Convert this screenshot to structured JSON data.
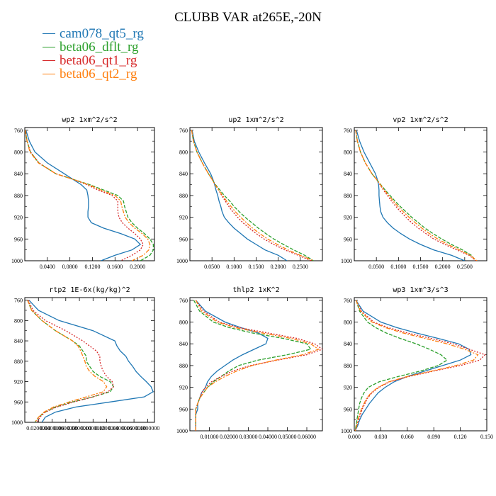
{
  "title": "CLUBB VAR at265E,-20N",
  "legend": [
    {
      "label": "cam078_qt5_rg",
      "color": "#1f77b4"
    },
    {
      "label": "beta06_dflt_rg",
      "color": "#2ca02c"
    },
    {
      "label": "beta06_qt1_rg",
      "color": "#d62728"
    },
    {
      "label": "beta06_qt2_rg",
      "color": "#ff7f0e"
    }
  ],
  "chart_data": [
    {
      "type": "line",
      "title": "wp2  1xm^2/s^2",
      "xlim": [
        0,
        0.23
      ],
      "ylim": [
        1000,
        755
      ],
      "xticks": [
        "0.0400",
        "0.0800",
        "0.1200",
        "0.1600",
        "0.2000"
      ],
      "xtick_values": [
        0.04,
        0.08,
        0.12,
        0.16,
        0.2
      ],
      "yticks": [
        760,
        800,
        840,
        880,
        920,
        960,
        1000
      ],
      "y": [
        760,
        780,
        800,
        820,
        840,
        850,
        860,
        870,
        880,
        890,
        900,
        910,
        920,
        930,
        940,
        950,
        960,
        970,
        980,
        990,
        1000
      ],
      "series": [
        {
          "name": "cam078_qt5_rg",
          "x": [
            0.002,
            0.008,
            0.018,
            0.04,
            0.07,
            0.085,
            0.1,
            0.11,
            0.112,
            0.113,
            0.113,
            0.112,
            0.112,
            0.118,
            0.14,
            0.17,
            0.195,
            0.205,
            0.19,
            0.16,
            0.135
          ]
        },
        {
          "name": "beta06_dflt_rg",
          "x": [
            0.001,
            0.004,
            0.01,
            0.025,
            0.055,
            0.085,
            0.115,
            0.14,
            0.165,
            0.175,
            0.177,
            0.18,
            0.183,
            0.19,
            0.2,
            0.212,
            0.222,
            0.228,
            0.228,
            0.222,
            0.205
          ]
        },
        {
          "name": "beta06_qt1_rg",
          "x": [
            0.001,
            0.004,
            0.01,
            0.025,
            0.055,
            0.085,
            0.11,
            0.13,
            0.155,
            0.165,
            0.165,
            0.165,
            0.167,
            0.173,
            0.183,
            0.195,
            0.205,
            0.21,
            0.205,
            0.19,
            0.17
          ]
        },
        {
          "name": "beta06_qt2_rg",
          "x": [
            0.001,
            0.004,
            0.009,
            0.024,
            0.055,
            0.085,
            0.113,
            0.135,
            0.16,
            0.17,
            0.172,
            0.175,
            0.178,
            0.185,
            0.195,
            0.208,
            0.218,
            0.222,
            0.22,
            0.21,
            0.19
          ]
        }
      ]
    },
    {
      "type": "line",
      "title": "up2  1xm^2/s^2",
      "xlim": [
        0,
        0.3
      ],
      "ylim": [
        1000,
        755
      ],
      "xticks": [
        "0.0500",
        "0.1000",
        "0.1500",
        "0.2000",
        "0.2500"
      ],
      "xtick_values": [
        0.05,
        0.1,
        0.15,
        0.2,
        0.25
      ],
      "yticks": [
        760,
        800,
        840,
        880,
        920,
        960,
        1000
      ],
      "y": [
        760,
        780,
        800,
        820,
        840,
        850,
        860,
        870,
        880,
        890,
        900,
        910,
        920,
        930,
        940,
        950,
        960,
        970,
        980,
        990,
        1000
      ],
      "series": [
        {
          "name": "cam078_qt5_rg",
          "x": [
            0.005,
            0.01,
            0.02,
            0.033,
            0.047,
            0.052,
            0.056,
            0.059,
            0.063,
            0.066,
            0.07,
            0.073,
            0.078,
            0.088,
            0.1,
            0.115,
            0.13,
            0.15,
            0.17,
            0.2,
            0.22
          ]
        },
        {
          "name": "beta06_dflt_rg",
          "x": [
            0.004,
            0.008,
            0.016,
            0.028,
            0.042,
            0.05,
            0.058,
            0.068,
            0.078,
            0.09,
            0.1,
            0.112,
            0.125,
            0.14,
            0.155,
            0.172,
            0.19,
            0.212,
            0.235,
            0.26,
            0.28
          ]
        },
        {
          "name": "beta06_qt1_rg",
          "x": [
            0.004,
            0.008,
            0.016,
            0.028,
            0.042,
            0.05,
            0.057,
            0.065,
            0.072,
            0.08,
            0.088,
            0.097,
            0.108,
            0.12,
            0.135,
            0.15,
            0.168,
            0.19,
            0.215,
            0.245,
            0.275
          ]
        },
        {
          "name": "beta06_qt2_rg",
          "x": [
            0.004,
            0.008,
            0.016,
            0.028,
            0.042,
            0.05,
            0.057,
            0.065,
            0.074,
            0.083,
            0.093,
            0.103,
            0.115,
            0.128,
            0.142,
            0.158,
            0.176,
            0.198,
            0.222,
            0.25,
            0.28
          ]
        }
      ]
    },
    {
      "type": "line",
      "title": "vp2  1xm^2/s^2",
      "xlim": [
        0,
        0.3
      ],
      "ylim": [
        1000,
        755
      ],
      "xticks": [
        "0.0500",
        "0.1000",
        "0.1500",
        "0.2000",
        "0.2500"
      ],
      "xtick_values": [
        0.05,
        0.1,
        0.15,
        0.2,
        0.25
      ],
      "yticks": [
        760,
        800,
        840,
        880,
        920,
        960,
        1000
      ],
      "y": [
        760,
        780,
        800,
        820,
        840,
        850,
        860,
        870,
        880,
        890,
        900,
        910,
        920,
        930,
        940,
        950,
        960,
        970,
        980,
        990,
        1000
      ],
      "series": [
        {
          "name": "cam078_qt5_rg",
          "x": [
            0.005,
            0.012,
            0.022,
            0.035,
            0.048,
            0.052,
            0.055,
            0.056,
            0.056,
            0.057,
            0.058,
            0.06,
            0.065,
            0.075,
            0.088,
            0.105,
            0.125,
            0.15,
            0.18,
            0.22,
            0.25
          ]
        },
        {
          "name": "beta06_dflt_rg",
          "x": [
            0.003,
            0.007,
            0.014,
            0.025,
            0.04,
            0.05,
            0.06,
            0.07,
            0.081,
            0.092,
            0.104,
            0.117,
            0.13,
            0.145,
            0.16,
            0.178,
            0.198,
            0.22,
            0.245,
            0.265,
            0.275
          ]
        },
        {
          "name": "beta06_qt1_rg",
          "x": [
            0.003,
            0.007,
            0.014,
            0.025,
            0.04,
            0.05,
            0.058,
            0.066,
            0.075,
            0.084,
            0.094,
            0.105,
            0.117,
            0.13,
            0.145,
            0.162,
            0.18,
            0.205,
            0.232,
            0.26,
            0.275
          ]
        },
        {
          "name": "beta06_qt2_rg",
          "x": [
            0.003,
            0.007,
            0.014,
            0.025,
            0.04,
            0.05,
            0.059,
            0.068,
            0.078,
            0.088,
            0.099,
            0.111,
            0.124,
            0.138,
            0.153,
            0.17,
            0.189,
            0.212,
            0.238,
            0.262,
            0.278
          ]
        }
      ]
    },
    {
      "type": "line",
      "title": "rtp2  1E-6x(kg/kg)^2",
      "xlim": [
        0,
        0.19
      ],
      "ylim": [
        1000,
        755
      ],
      "xticks": [
        "0.0200000",
        "0.0400000",
        "0.0600000",
        "0.0800000",
        "0.1000000",
        "0.1200000",
        "0.1400000",
        "0.1600000",
        "0.1800000"
      ],
      "xtick_values": [
        0.02,
        0.04,
        0.06,
        0.08,
        0.1,
        0.12,
        0.14,
        0.16,
        0.18
      ],
      "yticks": [
        760,
        800,
        840,
        880,
        920,
        960,
        1000
      ],
      "y": [
        760,
        780,
        800,
        820,
        840,
        850,
        860,
        870,
        880,
        890,
        900,
        910,
        920,
        930,
        940,
        950,
        960,
        970,
        980,
        990,
        1000
      ],
      "series": [
        {
          "name": "cam078_qt5_rg",
          "x": [
            0.006,
            0.02,
            0.05,
            0.1,
            0.132,
            0.135,
            0.14,
            0.148,
            0.152,
            0.158,
            0.163,
            0.17,
            0.178,
            0.185,
            0.188,
            0.175,
            0.125,
            0.075,
            0.045,
            0.03,
            0.025
          ]
        },
        {
          "name": "beta06_dflt_rg",
          "x": [
            0.004,
            0.01,
            0.025,
            0.045,
            0.07,
            0.08,
            0.085,
            0.09,
            0.09,
            0.095,
            0.1,
            0.11,
            0.125,
            0.13,
            0.125,
            0.1,
            0.07,
            0.045,
            0.03,
            0.02,
            0.015
          ]
        },
        {
          "name": "beta06_qt1_rg",
          "x": [
            0.005,
            0.012,
            0.03,
            0.06,
            0.085,
            0.095,
            0.105,
            0.11,
            0.11,
            0.112,
            0.115,
            0.12,
            0.128,
            0.13,
            0.122,
            0.1,
            0.072,
            0.047,
            0.03,
            0.022,
            0.018
          ]
        },
        {
          "name": "beta06_qt2_rg",
          "x": [
            0.004,
            0.01,
            0.025,
            0.045,
            0.07,
            0.078,
            0.082,
            0.085,
            0.088,
            0.09,
            0.095,
            0.103,
            0.115,
            0.12,
            0.115,
            0.09,
            0.065,
            0.042,
            0.028,
            0.02,
            0.015
          ]
        }
      ]
    },
    {
      "type": "line",
      "title": "thlp2  1xK^2",
      "xlim": [
        0,
        0.068
      ],
      "ylim": [
        1000,
        755
      ],
      "xticks": [
        "0.01000",
        "0.02000",
        "0.03000",
        "0.04000",
        "0.05000",
        "0.06000"
      ],
      "xtick_values": [
        0.01,
        0.02,
        0.03,
        0.04,
        0.05,
        0.06
      ],
      "yticks": [
        760,
        800,
        840,
        880,
        920,
        960,
        1000
      ],
      "y": [
        760,
        780,
        800,
        810,
        820,
        830,
        840,
        850,
        860,
        870,
        880,
        890,
        900,
        910,
        920,
        930,
        940,
        950,
        960,
        970,
        980,
        990,
        1000
      ],
      "series": [
        {
          "name": "cam078_qt5_rg",
          "x": [
            0.003,
            0.008,
            0.018,
            0.026,
            0.035,
            0.04,
            0.039,
            0.033,
            0.027,
            0.022,
            0.018,
            0.014,
            0.011,
            0.009,
            0.008,
            0.006,
            0.005,
            0.004,
            0.004,
            0.003,
            0.003,
            0.003,
            0.003
          ]
        },
        {
          "name": "beta06_dflt_rg",
          "x": [
            0.002,
            0.005,
            0.012,
            0.02,
            0.032,
            0.048,
            0.06,
            0.062,
            0.05,
            0.035,
            0.025,
            0.02,
            0.016,
            0.012,
            0.009,
            0.007,
            0.005,
            0.004,
            0.003,
            0.003,
            0.003,
            0.003,
            0.003
          ]
        },
        {
          "name": "beta06_qt1_rg",
          "x": [
            0.003,
            0.007,
            0.015,
            0.025,
            0.04,
            0.055,
            0.064,
            0.068,
            0.06,
            0.045,
            0.031,
            0.022,
            0.016,
            0.011,
            0.008,
            0.006,
            0.005,
            0.004,
            0.003,
            0.003,
            0.003,
            0.003,
            0.003
          ]
        },
        {
          "name": "beta06_qt2_rg",
          "x": [
            0.003,
            0.006,
            0.014,
            0.023,
            0.037,
            0.052,
            0.062,
            0.066,
            0.058,
            0.044,
            0.032,
            0.024,
            0.018,
            0.013,
            0.009,
            0.007,
            0.005,
            0.004,
            0.003,
            0.003,
            0.003,
            0.003,
            0.003
          ]
        }
      ]
    },
    {
      "type": "line",
      "title": "wp3  1xm^3/s^3",
      "xlim": [
        0,
        0.15
      ],
      "ylim": [
        1000,
        755
      ],
      "xticks": [
        "0.000",
        "0.030",
        "0.060",
        "0.090",
        "0.120",
        "0.150"
      ],
      "xtick_values": [
        0,
        0.03,
        0.06,
        0.09,
        0.12,
        0.15
      ],
      "yticks": [
        760,
        800,
        840,
        880,
        920,
        960,
        1000
      ],
      "y": [
        760,
        780,
        800,
        810,
        820,
        830,
        840,
        850,
        860,
        870,
        880,
        890,
        900,
        910,
        920,
        930,
        940,
        950,
        960,
        970,
        980,
        990,
        1000
      ],
      "series": [
        {
          "name": "cam078_qt5_rg",
          "x": [
            0.002,
            0.01,
            0.03,
            0.048,
            0.07,
            0.095,
            0.118,
            0.13,
            0.132,
            0.12,
            0.1,
            0.08,
            0.06,
            0.045,
            0.035,
            0.027,
            0.022,
            0.017,
            0.013,
            0.009,
            0.006,
            0.004,
            0.001
          ]
        },
        {
          "name": "beta06_dflt_rg",
          "x": [
            0.002,
            0.006,
            0.015,
            0.024,
            0.036,
            0.052,
            0.07,
            0.085,
            0.098,
            0.105,
            0.095,
            0.075,
            0.05,
            0.028,
            0.016,
            0.011,
            0.008,
            0.006,
            0.005,
            0.004,
            0.003,
            0.002,
            0.001
          ]
        },
        {
          "name": "beta06_qt1_rg",
          "x": [
            0.002,
            0.008,
            0.022,
            0.038,
            0.06,
            0.087,
            0.112,
            0.13,
            0.148,
            0.142,
            0.12,
            0.09,
            0.062,
            0.04,
            0.028,
            0.02,
            0.015,
            0.012,
            0.009,
            0.007,
            0.005,
            0.003,
            0.001
          ]
        },
        {
          "name": "beta06_qt2_rg",
          "x": [
            0.002,
            0.007,
            0.02,
            0.035,
            0.055,
            0.08,
            0.105,
            0.125,
            0.14,
            0.135,
            0.115,
            0.088,
            0.06,
            0.039,
            0.027,
            0.019,
            0.014,
            0.011,
            0.008,
            0.006,
            0.004,
            0.003,
            0.001
          ]
        }
      ]
    }
  ]
}
